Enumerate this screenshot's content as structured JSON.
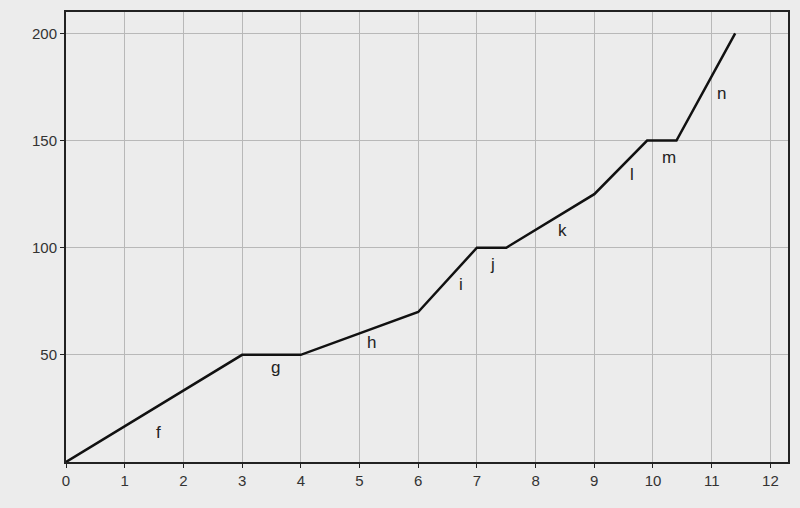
{
  "chart_data": {
    "type": "line",
    "x": [
      0,
      3,
      4,
      6,
      7,
      7.5,
      9,
      9.9,
      10.4,
      11.4
    ],
    "values": [
      0,
      50,
      50,
      70,
      100,
      100,
      125,
      150,
      150,
      200
    ],
    "color": "#111111",
    "xlim": [
      0,
      12.3
    ],
    "ylim": [
      0,
      210
    ],
    "xticks": [
      0,
      1,
      2,
      3,
      4,
      5,
      6,
      7,
      8,
      9,
      10,
      11,
      12
    ],
    "yticks": [
      50,
      100,
      150,
      200
    ],
    "grid": true,
    "annotations": [
      {
        "text": "f",
        "x": 1.58,
        "y": 14
      },
      {
        "text": "g",
        "x": 3.57,
        "y": 44
      },
      {
        "text": "h",
        "x": 5.2,
        "y": 56
      },
      {
        "text": "i",
        "x": 6.73,
        "y": 83
      },
      {
        "text": "j",
        "x": 7.26,
        "y": 92
      },
      {
        "text": "k",
        "x": 8.45,
        "y": 108
      },
      {
        "text": "l",
        "x": 9.65,
        "y": 134
      },
      {
        "text": "m",
        "x": 10.27,
        "y": 142
      },
      {
        "text": "n",
        "x": 11.16,
        "y": 172
      }
    ]
  }
}
